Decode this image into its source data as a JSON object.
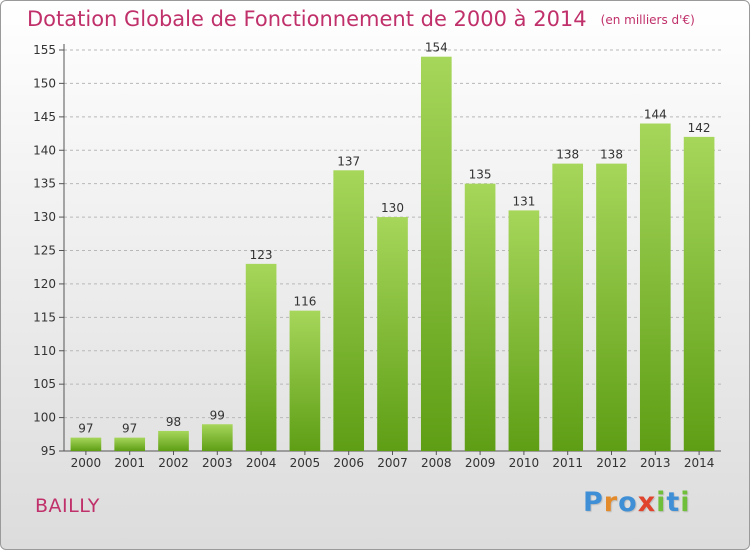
{
  "title": "Dotation Globale de Fonctionnement de 2000 à 2014",
  "unit": "(en milliers d'€)",
  "commune": "BAILLY",
  "logo_letters": [
    "P",
    "r",
    "o",
    "x",
    "i",
    "t",
    "i"
  ],
  "colors": {
    "title": "#c0306a",
    "bar_top": "#a6d65a",
    "bar_bottom": "#5e9e15",
    "grid": "#b8b8b8"
  },
  "chart_data": {
    "type": "bar",
    "title": "Dotation Globale de Fonctionnement de 2000 à 2014",
    "categories": [
      "2000",
      "2001",
      "2002",
      "2003",
      "2004",
      "2005",
      "2006",
      "2007",
      "2008",
      "2009",
      "2010",
      "2011",
      "2012",
      "2013",
      "2014"
    ],
    "values": [
      97,
      97,
      98,
      99,
      123,
      116,
      137,
      130,
      154,
      135,
      131,
      138,
      138,
      144,
      142
    ],
    "ylim": [
      95,
      155
    ],
    "yticks": [
      95,
      100,
      105,
      110,
      115,
      120,
      125,
      130,
      135,
      140,
      145,
      150,
      155
    ],
    "grid": true,
    "legend": "none"
  }
}
